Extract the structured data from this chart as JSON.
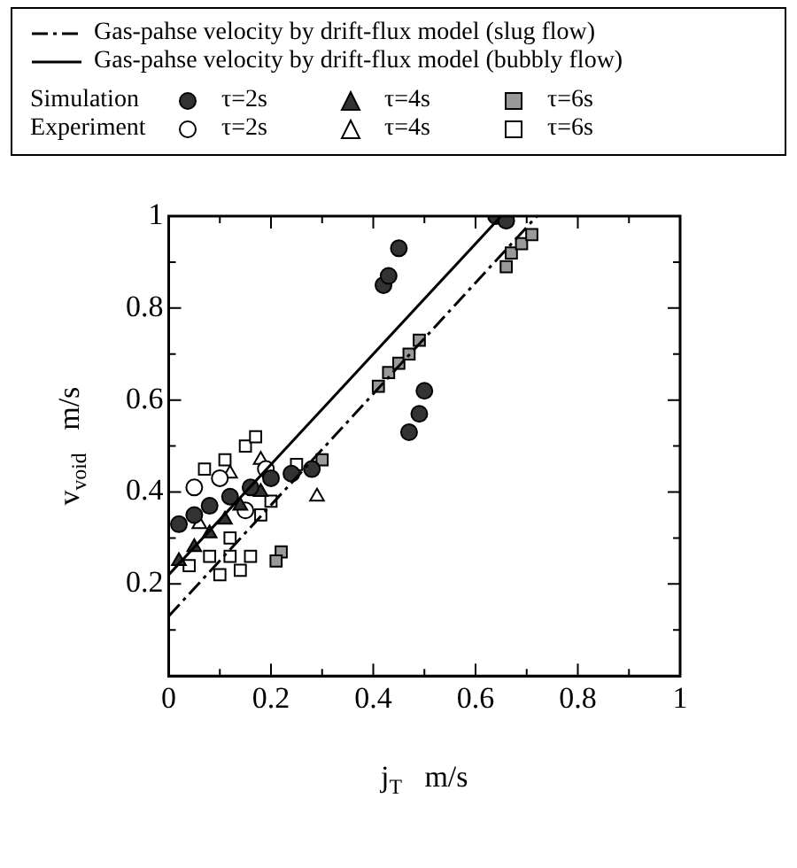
{
  "chart_data": {
    "type": "scatter",
    "xlabel": "j$_{T}$   m/s",
    "ylabel": "v$_{void}$   m/s",
    "legend": "top",
    "grid": false,
    "annotations": [
      "Simulation",
      "Experiment"
    ],
    "xlim": [
      0,
      1
    ],
    "ylim": [
      0,
      1
    ],
    "xticks": [
      0,
      {
        "value": 0.1,
        "label": null
      },
      0.2,
      {
        "value": 0.3,
        "label": null
      },
      0.4,
      {
        "value": 0.5,
        "label": null
      },
      0.6,
      {
        "value": 0.7,
        "label": null
      },
      0.8,
      {
        "value": 0.9,
        "label": null
      },
      1
    ],
    "yticks": [
      {
        "value": 0,
        "label": null
      },
      {
        "value": 0.1,
        "label": null
      },
      0.2,
      {
        "value": 0.3,
        "label": null
      },
      0.4,
      {
        "value": 0.5,
        "label": null
      },
      0.6,
      {
        "value": 0.7,
        "label": null
      },
      0.8,
      {
        "value": 0.9,
        "label": null
      },
      1
    ],
    "series": [
      {
        "type": "line",
        "name": "Gas-pahse velocity by drift-flux model (slug flow)",
        "color": "#000000",
        "line_style": "dashed",
        "marker": "none",
        "x": [
          0,
          0.72
        ],
        "values": [
          0.13,
          1.0
        ]
      },
      {
        "type": "line",
        "name": "Gas-pahse velocity by drift-flux model (bubbly flow)",
        "color": "#000000",
        "line_style": "solid",
        "marker": "none",
        "x": [
          0,
          0.65
        ],
        "values": [
          0.22,
          1.0
        ]
      },
      {
        "name": "τ=2s",
        "color": "#333333",
        "marker": "circle",
        "x": [
          0.42,
          0.43,
          0.45,
          0.47,
          0.49,
          0.5,
          0.64,
          0.66,
          0.02,
          0.05,
          0.08,
          0.12,
          0.16,
          0.2,
          0.24,
          0.28
        ],
        "values": [
          0.85,
          0.87,
          0.93,
          0.53,
          0.57,
          0.62,
          1.0,
          0.99,
          0.33,
          0.35,
          0.37,
          0.39,
          0.41,
          0.43,
          0.44,
          0.45
        ]
      },
      {
        "name": "τ=4s",
        "color": "#333333",
        "marker": "triangle",
        "x": [
          0.02,
          0.05,
          0.08,
          0.11,
          0.14,
          0.18
        ],
        "values": [
          0.25,
          0.28,
          0.31,
          0.34,
          0.37,
          0.4
        ]
      },
      {
        "name": "τ=6s",
        "color": "#999999",
        "marker": "square",
        "x": [
          0.41,
          0.43,
          0.45,
          0.47,
          0.49,
          0.66,
          0.67,
          0.69,
          0.71,
          0.3,
          0.22,
          0.21
        ],
        "values": [
          0.63,
          0.66,
          0.68,
          0.7,
          0.73,
          0.89,
          0.92,
          0.94,
          0.96,
          0.47,
          0.27,
          0.25
        ]
      },
      {
        "name": "τ=2s",
        "color": "#ffffff",
        "marker": "circle",
        "x": [
          0.05,
          0.1,
          0.15,
          0.19
        ],
        "values": [
          0.41,
          0.43,
          0.36,
          0.45
        ]
      },
      {
        "name": "τ=4s",
        "color": "#ffffff",
        "marker": "triangle",
        "x": [
          0.29,
          0.12,
          0.18,
          0.06
        ],
        "values": [
          0.39,
          0.44,
          0.47,
          0.33
        ]
      },
      {
        "name": "τ=6s",
        "color": "#ffffff",
        "marker": "square",
        "x": [
          0.07,
          0.11,
          0.15,
          0.17,
          0.2,
          0.25,
          0.1,
          0.14,
          0.08,
          0.12,
          0.16,
          0.18,
          0.12,
          0.04
        ],
        "values": [
          0.45,
          0.47,
          0.5,
          0.52,
          0.38,
          0.46,
          0.22,
          0.23,
          0.26,
          0.26,
          0.26,
          0.35,
          0.3,
          0.24
        ]
      }
    ]
  }
}
